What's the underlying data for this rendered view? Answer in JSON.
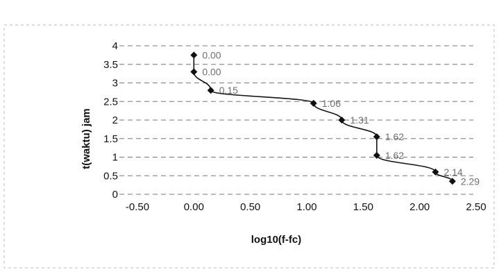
{
  "chart_data": {
    "type": "scatter",
    "title": "",
    "xlabel": "log10(f-fc)",
    "ylabel": "t(waktu) jam",
    "xlim": [
      -0.5,
      2.5
    ],
    "ylim": [
      0,
      4
    ],
    "x_ticks": [
      "-0.50",
      "0.00",
      "0.50",
      "1.00",
      "1.50",
      "2.00",
      "2.50"
    ],
    "y_ticks": [
      "0",
      "0.5",
      "1",
      "1.5",
      "2",
      "2.5",
      "3",
      "3.5",
      "4"
    ],
    "grid": true,
    "legend": "none",
    "series": [
      {
        "points": [
          {
            "x": 0.0,
            "y": 3.75,
            "label": "0.00"
          },
          {
            "x": 0.0,
            "y": 3.3,
            "label": "0.00"
          },
          {
            "x": 0.15,
            "y": 2.8,
            "label": "0.15"
          },
          {
            "x": 1.06,
            "y": 2.45,
            "label": "1.06"
          },
          {
            "x": 1.31,
            "y": 2.0,
            "label": "1.31"
          },
          {
            "x": 1.62,
            "y": 1.55,
            "label": "1.62"
          },
          {
            "x": 1.62,
            "y": 1.05,
            "label": "1.62"
          },
          {
            "x": 2.14,
            "y": 0.6,
            "label": "2.14"
          },
          {
            "x": 2.29,
            "y": 0.35,
            "label": "2.29"
          }
        ]
      }
    ],
    "colors": {
      "series": "#111111",
      "grid": "#777777",
      "label": "#555555"
    }
  }
}
